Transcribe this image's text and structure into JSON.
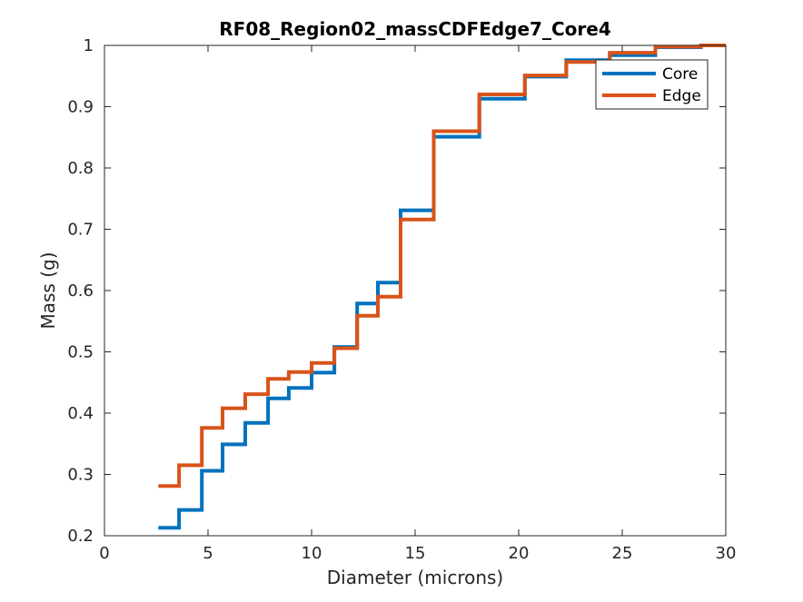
{
  "chart_data": {
    "type": "line",
    "step": true,
    "title": "RF08_Region02_massCDFEdge7_Core4",
    "xlabel": "Diameter (microns)",
    "ylabel": "Mass (g)",
    "xlim": [
      0,
      30
    ],
    "ylim": [
      0.2,
      1
    ],
    "xticks": [
      0,
      5,
      10,
      15,
      20,
      25,
      30
    ],
    "yticks": [
      0.2,
      0.3,
      0.4,
      0.5,
      0.6,
      0.7,
      0.8,
      0.9,
      1
    ],
    "xtick_labels": [
      "0",
      "5",
      "10",
      "15",
      "20",
      "25",
      "30"
    ],
    "ytick_labels": [
      "0.2",
      "0.3",
      "0.4",
      "0.5",
      "0.6",
      "0.7",
      "0.8",
      "0.9",
      "1"
    ],
    "grid": false,
    "legend_position": "top-right",
    "series": [
      {
        "name": "Core",
        "color": "#0072BD",
        "x": [
          2.6,
          3.6,
          4.7,
          5.7,
          6.8,
          7.9,
          8.9,
          10.0,
          11.1,
          12.2,
          13.2,
          14.3,
          15.9,
          18.1,
          20.3,
          22.3,
          24.4,
          26.6,
          28.8,
          30.0
        ],
        "y": [
          0.213,
          0.242,
          0.306,
          0.349,
          0.384,
          0.424,
          0.441,
          0.466,
          0.508,
          0.579,
          0.613,
          0.731,
          0.851,
          0.913,
          0.949,
          0.976,
          0.984,
          0.997,
          1.0,
          1.0
        ]
      },
      {
        "name": "Edge",
        "color": "#D95319",
        "x": [
          2.6,
          3.6,
          4.7,
          5.7,
          6.8,
          7.9,
          8.9,
          10.0,
          11.1,
          12.2,
          13.2,
          14.3,
          15.9,
          18.1,
          20.3,
          22.3,
          24.4,
          26.6,
          28.8,
          30.0
        ],
        "y": [
          0.281,
          0.315,
          0.376,
          0.408,
          0.431,
          0.456,
          0.467,
          0.482,
          0.506,
          0.559,
          0.59,
          0.716,
          0.86,
          0.92,
          0.951,
          0.973,
          0.988,
          0.998,
          1.0,
          1.0
        ]
      }
    ]
  }
}
